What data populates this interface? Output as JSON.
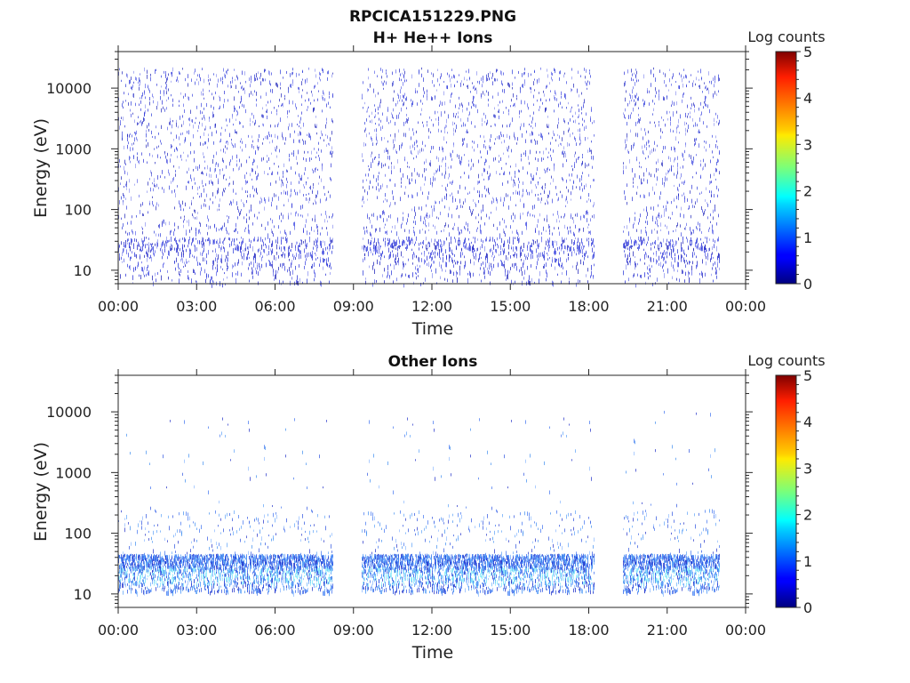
{
  "figure": {
    "title": "RPCICA151229.PNG"
  },
  "chart_data": [
    {
      "type": "heatmap",
      "title": "H+ He++ Ions",
      "xlabel": "Time",
      "ylabel": "Energy (eV)",
      "x_ticks": [
        "00:00",
        "03:00",
        "06:00",
        "09:00",
        "12:00",
        "15:00",
        "18:00",
        "21:00",
        "00:00"
      ],
      "y_ticks": [
        "10",
        "100",
        "1000",
        "10000"
      ],
      "xlim_hours": [
        0,
        24
      ],
      "ylim_eV": [
        6,
        40000
      ],
      "y_scale": "log",
      "colorbar": {
        "label": "Log counts",
        "ticks": [
          "0",
          "1",
          "2",
          "3",
          "4",
          "5"
        ],
        "range": [
          0,
          5
        ],
        "colormap": "jet"
      },
      "data_gaps_hours": [
        [
          8.2,
          9.3
        ],
        [
          18.2,
          19.3
        ]
      ],
      "data_end_hour": 23.0,
      "coverage": "sparse counts mostly 0-1 log counts (dark blue) spread across 10 eV - 20000 eV, denser band at 15-30 eV"
    },
    {
      "type": "heatmap",
      "title": "Other Ions",
      "xlabel": "Time",
      "ylabel": "Energy (eV)",
      "x_ticks": [
        "00:00",
        "03:00",
        "06:00",
        "09:00",
        "12:00",
        "15:00",
        "18:00",
        "21:00",
        "00:00"
      ],
      "y_ticks": [
        "10",
        "100",
        "1000",
        "10000"
      ],
      "xlim_hours": [
        0,
        24
      ],
      "ylim_eV": [
        6,
        40000
      ],
      "y_scale": "log",
      "colorbar": {
        "label": "Log counts",
        "ticks": [
          "0",
          "1",
          "2",
          "3",
          "4",
          "5"
        ],
        "range": [
          0,
          5
        ],
        "colormap": "jet"
      },
      "data_gaps_hours": [
        [
          8.2,
          9.3
        ],
        [
          18.2,
          19.3
        ]
      ],
      "data_end_hour": 23.0,
      "coverage": "dense band 12-45 eV reaching 1.5-2 log counts (light blue/cyan), sparse points up to ~10000 eV"
    }
  ]
}
